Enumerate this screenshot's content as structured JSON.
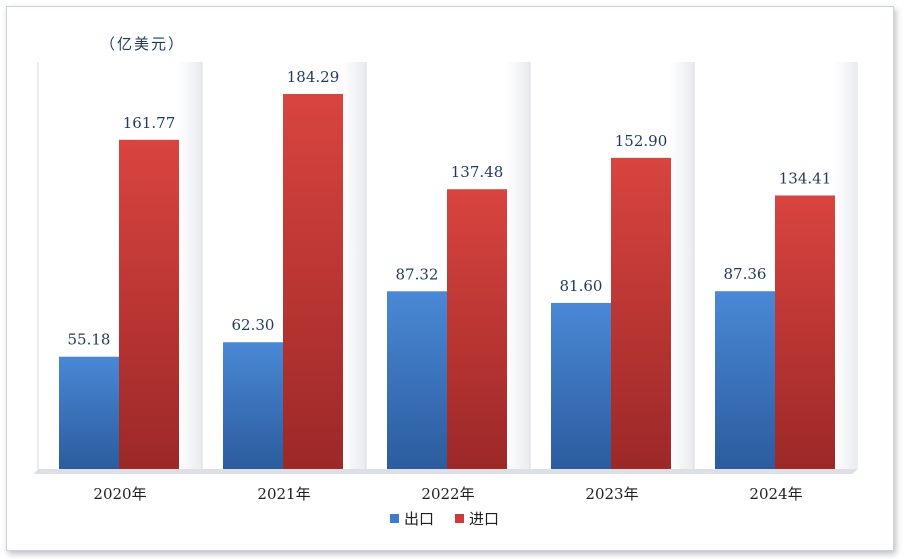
{
  "chart_data": {
    "type": "bar",
    "unit_label": "（亿美元）",
    "categories": [
      "2020年",
      "2021年",
      "2022年",
      "2023年",
      "2024年"
    ],
    "series": [
      {
        "name": "出口",
        "values": [
          55.18,
          62.3,
          87.32,
          81.6,
          87.36
        ],
        "labels": [
          "55.18",
          "62.30",
          "87.32",
          "81.60",
          "87.36"
        ],
        "color": "#3d7cc9"
      },
      {
        "name": "进口",
        "values": [
          161.77,
          184.29,
          137.48,
          152.9,
          134.41
        ],
        "labels": [
          "161.77",
          "184.29",
          "137.48",
          "152.90",
          "134.41"
        ],
        "color": "#cc3b38"
      }
    ],
    "ylim": [
      0,
      200
    ],
    "grid": false,
    "legend_position": "bottom"
  }
}
